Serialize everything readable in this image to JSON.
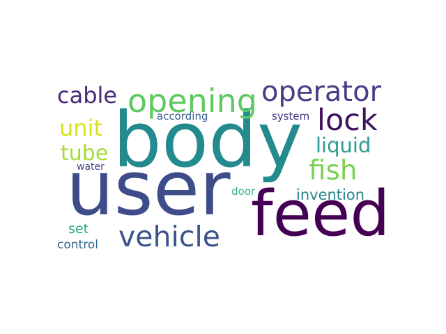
{
  "words": {
    "body": {
      "text": "body",
      "color": "#238a8d"
    },
    "user": {
      "text": "user",
      "color": "#3e4c8a"
    },
    "feed": {
      "text": "feed",
      "color": "#440154"
    },
    "operator": {
      "text": "operator",
      "color": "#433e85"
    },
    "opening": {
      "text": "opening",
      "color": "#5ec962"
    },
    "vehicle": {
      "text": "vehicle",
      "color": "#3b528b"
    },
    "cable": {
      "text": "cable",
      "color": "#482878"
    },
    "lock": {
      "text": "lock",
      "color": "#3e0f5c"
    },
    "fish": {
      "text": "fish",
      "color": "#7ad151"
    },
    "liquid": {
      "text": "liquid",
      "color": "#2a9d8f"
    },
    "unit": {
      "text": "unit",
      "color": "#d8e219"
    },
    "tube": {
      "text": "tube",
      "color": "#a5db36"
    },
    "invention": {
      "text": "invention",
      "color": "#26828e"
    },
    "according": {
      "text": "according",
      "color": "#355f8d"
    },
    "system": {
      "text": "system",
      "color": "#453581"
    },
    "water": {
      "text": "water",
      "color": "#404688"
    },
    "set": {
      "text": "set",
      "color": "#22a884"
    },
    "control": {
      "text": "control",
      "color": "#31688e"
    },
    "door": {
      "text": "door",
      "color": "#35b779"
    }
  }
}
